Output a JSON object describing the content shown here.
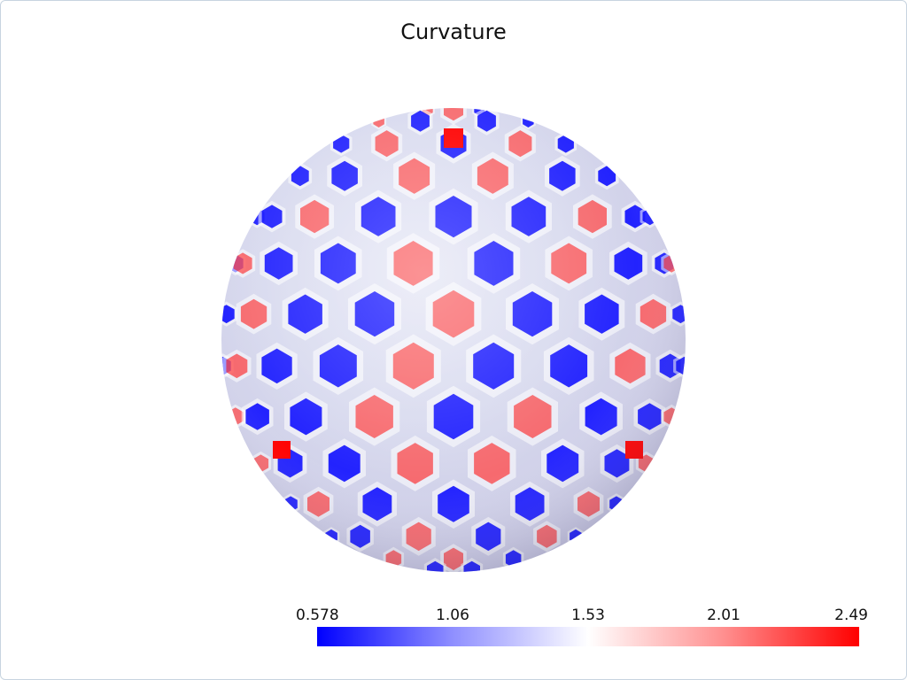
{
  "title": "Curvature",
  "colorbar": {
    "ticks": [
      "0.578",
      "1.06",
      "1.53",
      "2.01",
      "2.49"
    ],
    "min_color": "#0000ff",
    "mid_color": "#ffffff",
    "max_color": "#ff0000"
  },
  "colors": {
    "background": "#ffffff",
    "low": "#0000ff",
    "high": "#ff0000"
  }
}
